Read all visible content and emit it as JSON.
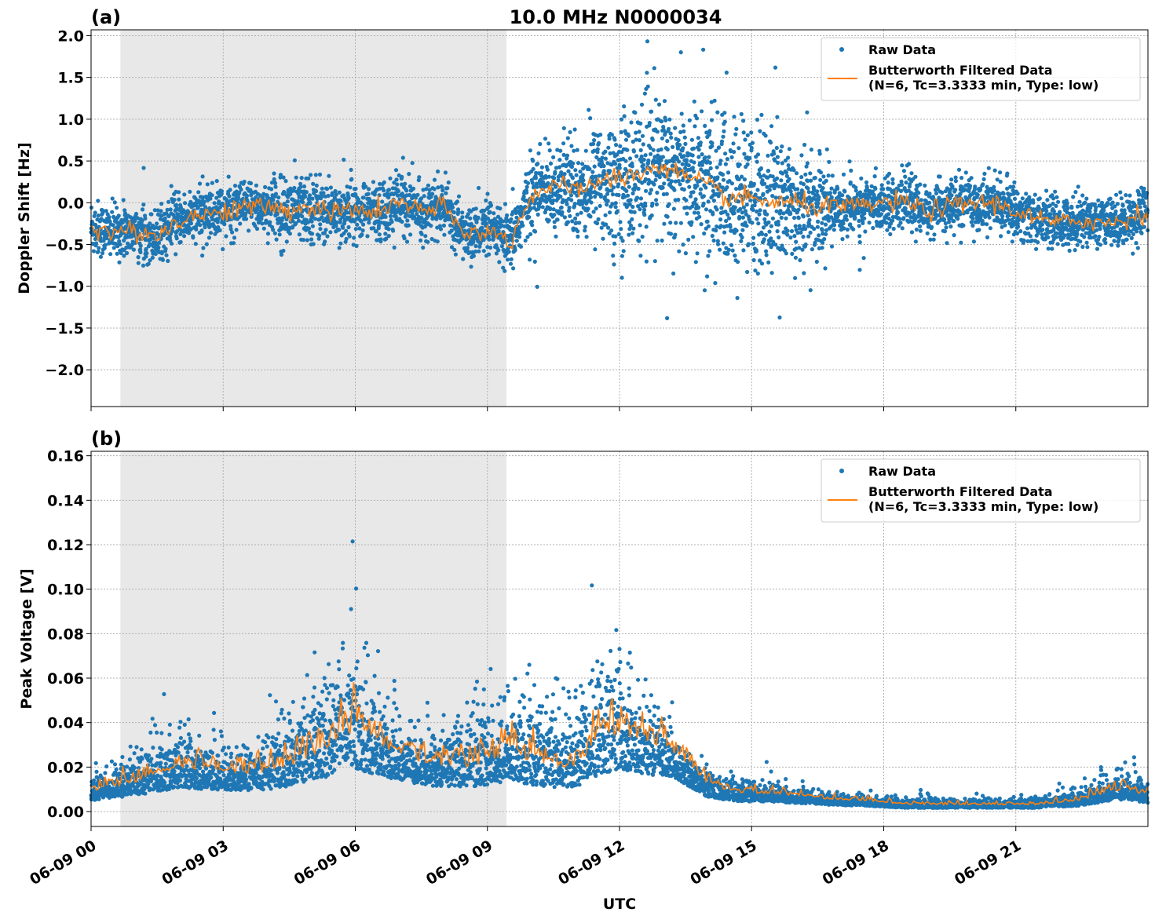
{
  "chart_data": [
    {
      "type": "scatter+line",
      "panel_label": "(a)",
      "title": "10.0 MHz N0000034",
      "xlabel": "",
      "ylabel": "Doppler Shift [Hz]",
      "xlim_hours": [
        0,
        24
      ],
      "ylim": [
        -2.44,
        2.07
      ],
      "yticks": [
        2.0,
        1.5,
        1.0,
        0.5,
        0.0,
        -0.5,
        -1.0,
        -1.5,
        -2.0
      ],
      "ytick_labels": [
        "2.0",
        "1.5",
        "1.0",
        "0.5",
        "0.0",
        "−0.5",
        "−1.0",
        "−1.5",
        "−2.0"
      ],
      "grid": true,
      "legend_position": "top-right",
      "shaded_region_utc": [
        "06-09 00:40",
        "06-09 09:26"
      ],
      "filtered_hours_step": 0.5,
      "filtered_values": [
        -0.3,
        -0.35,
        -0.35,
        -0.4,
        -0.2,
        -0.15,
        -0.1,
        -0.05,
        -0.05,
        -0.1,
        -0.05,
        -0.1,
        -0.1,
        -0.1,
        0.0,
        -0.1,
        -0.05,
        -0.4,
        -0.3,
        -0.5,
        0.1,
        0.2,
        0.15,
        0.25,
        0.3,
        0.35,
        0.45,
        0.3,
        0.2,
        0.0,
        -0.1,
        0.0,
        0.4,
        0.45,
        0.45,
        0.4,
        0.5,
        0.4,
        0.2,
        0.25,
        0.25,
        0.2,
        0.25,
        0.2,
        0.15,
        0.2,
        0.2,
        0.1,
        0.05
      ],
      "filtered_values_late": [
        0.05,
        0.05,
        0.0,
        0.0,
        -0.05,
        -0.05,
        -0.05,
        0.0,
        0.0,
        -0.1,
        -0.05,
        0.0,
        0.0,
        -0.1,
        -0.2,
        -0.25,
        -0.2,
        -0.25,
        -0.2,
        -0.1
      ],
      "raw_spread": [
        0.35,
        0.3,
        0.3,
        0.3,
        0.3,
        0.3,
        0.3,
        0.3,
        0.3,
        0.4,
        0.4,
        0.35,
        0.35,
        0.35,
        0.35,
        0.3,
        0.3,
        0.3,
        0.3,
        0.35,
        0.45,
        0.5,
        0.6,
        0.7,
        0.8,
        0.8,
        0.85,
        0.9,
        0.9,
        0.9,
        0.9,
        0.85,
        0.75,
        0.6,
        0.35,
        0.3,
        0.3,
        0.3,
        0.3,
        0.3,
        0.3,
        0.3,
        0.3,
        0.3,
        0.3,
        0.3,
        0.3,
        0.3,
        0.3
      ],
      "series": [
        {
          "name": "Raw Data",
          "color": "#1f77b4"
        },
        {
          "name": "Butterworth Filtered Data\n(N=6, Tc=3.3333 min, Type: low)",
          "color": "#ff7f0e"
        }
      ]
    },
    {
      "type": "scatter+line",
      "panel_label": "(b)",
      "xlabel": "UTC",
      "ylabel": "Peak Voltage [V]",
      "xlim_hours": [
        0,
        24
      ],
      "ylim": [
        -0.0067,
        0.162
      ],
      "yticks": [
        0.16,
        0.14,
        0.12,
        0.1,
        0.08,
        0.06,
        0.04,
        0.02,
        0.0
      ],
      "ytick_labels": [
        "0.16",
        "0.14",
        "0.12",
        "0.10",
        "0.08",
        "0.06",
        "0.04",
        "0.02",
        "0.00"
      ],
      "xticks_hours": [
        0,
        3,
        6,
        9,
        12,
        15,
        18,
        21
      ],
      "xtick_labels": [
        "06-09 00",
        "06-09 03",
        "06-09 06",
        "06-09 09",
        "06-09 12",
        "06-09 15",
        "06-09 18",
        "06-09 21"
      ],
      "grid": true,
      "legend_position": "top-right",
      "shaded_region_utc": [
        "06-09 00:40",
        "06-09 09:26"
      ],
      "filtered_hours_step": 0.5,
      "filtered_values": [
        0.009,
        0.011,
        0.013,
        0.016,
        0.02,
        0.018,
        0.018,
        0.017,
        0.018,
        0.02,
        0.025,
        0.03,
        0.035,
        0.03,
        0.025,
        0.022,
        0.02,
        0.02,
        0.022,
        0.025,
        0.022,
        0.02,
        0.02,
        0.03,
        0.035,
        0.03,
        0.03,
        0.022,
        0.012,
        0.009,
        0.008,
        0.008,
        0.007,
        0.006,
        0.005,
        0.005,
        0.004,
        0.003,
        0.003,
        0.003,
        0.003,
        0.003,
        0.003,
        0.003,
        0.004,
        0.005,
        0.008,
        0.01,
        0.007
      ],
      "raw_spread": [
        0.01,
        0.015,
        0.02,
        0.025,
        0.025,
        0.02,
        0.02,
        0.02,
        0.025,
        0.035,
        0.04,
        0.05,
        0.06,
        0.04,
        0.03,
        0.025,
        0.025,
        0.03,
        0.035,
        0.035,
        0.04,
        0.04,
        0.035,
        0.05,
        0.055,
        0.04,
        0.025,
        0.015,
        0.012,
        0.01,
        0.01,
        0.008,
        0.007,
        0.006,
        0.005,
        0.004,
        0.004,
        0.004,
        0.005,
        0.004,
        0.004,
        0.004,
        0.004,
        0.005,
        0.006,
        0.008,
        0.012,
        0.015,
        0.01
      ],
      "series": [
        {
          "name": "Raw Data",
          "color": "#1f77b4"
        },
        {
          "name": "Butterworth Filtered Data\n(N=6, Tc=3.3333 min, Type: low)",
          "color": "#ff7f0e"
        }
      ]
    }
  ]
}
